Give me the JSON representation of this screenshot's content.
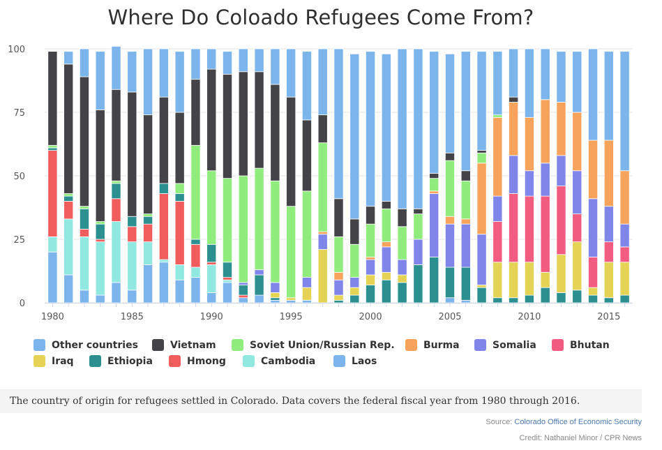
{
  "header": {
    "title": "Where Do Coloado Refugees Come From?"
  },
  "caption": "The country of origin for refugees settled in Colorado. Data covers the federal fiscal year from 1980 through 2016.",
  "footer": {
    "source_prefix": "Source: ",
    "source_name": "Colorado Office of Economic Security",
    "credit": "Credit: Nathaniel Minor / CPR News"
  },
  "chart_data": {
    "type": "bar",
    "stacked": true,
    "title": "Where Do Coloado Refugees Come From?",
    "xlabel": "",
    "ylabel": "",
    "ylim": [
      0,
      100
    ],
    "yticks": [
      0,
      25,
      50,
      75,
      100
    ],
    "xticks": [
      1980,
      1985,
      1990,
      1995,
      2000,
      2005,
      2010,
      2015
    ],
    "grid": true,
    "legend_position": "bottom",
    "categories": [
      1980,
      1981,
      1982,
      1983,
      1984,
      1985,
      1986,
      1987,
      1988,
      1989,
      1990,
      1991,
      1992,
      1993,
      1994,
      1995,
      1996,
      1997,
      1998,
      1999,
      2000,
      2001,
      2002,
      2003,
      2004,
      2005,
      2006,
      2007,
      2008,
      2009,
      2010,
      2011,
      2012,
      2013,
      2014,
      2015,
      2016
    ],
    "stack_order": [
      "Laos",
      "Cambodia",
      "Hmong",
      "Ethiopia",
      "Iraq",
      "Bhutan",
      "Somalia",
      "Burma",
      "Soviet Union/Russian Rep.",
      "Vietnam",
      "Other countries"
    ],
    "series": [
      {
        "name": "Laos",
        "color": "#7cb5ec",
        "values": [
          20,
          11,
          5,
          3,
          8,
          5,
          15,
          16,
          9,
          10,
          4,
          8,
          2,
          3,
          1,
          1,
          1,
          0,
          0,
          0,
          0,
          0,
          0,
          0,
          0,
          2,
          1,
          0,
          0,
          0,
          0,
          0,
          0,
          0,
          0,
          0,
          0
        ]
      },
      {
        "name": "Cambodia",
        "color": "#91e8e1",
        "values": [
          6,
          22,
          21,
          21,
          24,
          19,
          9,
          1,
          6,
          4,
          11,
          1,
          0,
          0,
          0,
          0,
          0,
          0,
          0,
          0,
          0,
          0,
          0,
          0,
          0,
          0,
          0,
          0,
          0,
          0,
          0,
          0,
          0,
          0,
          0,
          0,
          0
        ]
      },
      {
        "name": "Hmong",
        "color": "#f15c5c",
        "values": [
          34,
          7,
          3,
          1,
          9,
          6,
          7,
          26,
          25,
          9,
          1,
          1,
          1,
          0,
          0,
          0,
          0,
          0,
          0,
          0,
          0,
          0,
          0,
          0,
          0,
          0,
          0,
          0,
          0,
          0,
          0,
          0,
          0,
          0,
          0,
          0,
          0
        ]
      },
      {
        "name": "Ethiopia",
        "color": "#2b908f",
        "values": [
          1,
          2,
          8,
          6,
          6,
          4,
          3,
          4,
          3,
          2,
          7,
          6,
          4,
          8,
          1,
          0,
          0,
          0,
          1,
          3,
          7,
          9,
          8,
          15,
          18,
          12,
          13,
          6,
          2,
          2,
          3,
          6,
          4,
          5,
          3,
          2,
          3
        ]
      },
      {
        "name": "Iraq",
        "color": "#e4d354",
        "values": [
          0,
          0,
          0,
          0,
          0,
          0,
          0,
          0,
          0,
          0,
          0,
          0,
          0,
          0,
          2,
          1,
          5,
          21,
          2,
          3,
          4,
          3,
          3,
          0,
          0,
          0,
          0,
          1,
          14,
          14,
          13,
          6,
          15,
          19,
          3,
          14,
          13
        ]
      },
      {
        "name": "Bhutan",
        "color": "#f15c80",
        "values": [
          0,
          0,
          0,
          0,
          0,
          0,
          0,
          0,
          0,
          0,
          0,
          0,
          0,
          0,
          0,
          0,
          0,
          0,
          0,
          0,
          0,
          0,
          0,
          0,
          0,
          0,
          0,
          0,
          16,
          27,
          26,
          30,
          27,
          11,
          12,
          8,
          6
        ]
      },
      {
        "name": "Somalia",
        "color": "#8085e9",
        "values": [
          0,
          0,
          0,
          0,
          0,
          0,
          0,
          0,
          0,
          0,
          0,
          0,
          1,
          2,
          4,
          0,
          4,
          6,
          6,
          4,
          6,
          10,
          6,
          10,
          25,
          17,
          17,
          20,
          10,
          15,
          10,
          13,
          12,
          17,
          23,
          14,
          9
        ]
      },
      {
        "name": "Burma",
        "color": "#f7a35c",
        "values": [
          0,
          0,
          0,
          0,
          0,
          0,
          0,
          0,
          0,
          0,
          0,
          0,
          0,
          0,
          0,
          0,
          0,
          1,
          3,
          0,
          1,
          2,
          0,
          0,
          1,
          3,
          2,
          28,
          31,
          21,
          21,
          25,
          21,
          23,
          23,
          26,
          21
        ]
      },
      {
        "name": "Soviet Union/Russian Rep.",
        "color": "#90ed7d",
        "values": [
          1,
          1,
          1,
          1,
          1,
          0,
          1,
          0,
          4,
          37,
          29,
          33,
          42,
          40,
          40,
          36,
          34,
          35,
          14,
          13,
          13,
          13,
          13,
          10,
          5,
          22,
          15,
          4,
          1,
          0,
          0,
          0,
          0,
          0,
          0,
          0,
          0
        ]
      },
      {
        "name": "Vietnam",
        "color": "#434348",
        "values": [
          37,
          51,
          51,
          44,
          36,
          49,
          39,
          34,
          28,
          26,
          40,
          41,
          41,
          38,
          38,
          43,
          28,
          11,
          15,
          10,
          7,
          3,
          7,
          2,
          2,
          3,
          4,
          1,
          0,
          2,
          0,
          0,
          0,
          0,
          0,
          0,
          0
        ]
      },
      {
        "name": "Other countries",
        "color": "#7cb5ec",
        "values": [
          0,
          5,
          11,
          23,
          17,
          16,
          26,
          19,
          24,
          12,
          8,
          9,
          9,
          9,
          14,
          19,
          27,
          26,
          59,
          65,
          61,
          58,
          63,
          63,
          48,
          39,
          47,
          39,
          25,
          19,
          27,
          20,
          20,
          24,
          36,
          35,
          47
        ]
      }
    ]
  },
  "legend": [
    {
      "label": "Other countries",
      "color": "#7cb5ec"
    },
    {
      "label": "Vietnam",
      "color": "#434348"
    },
    {
      "label": "Soviet Union/Russian Rep.",
      "color": "#90ed7d"
    },
    {
      "label": "Burma",
      "color": "#f7a35c"
    },
    {
      "label": "Somalia",
      "color": "#8085e9"
    },
    {
      "label": "Bhutan",
      "color": "#f15c80"
    },
    {
      "label": "Iraq",
      "color": "#e4d354"
    },
    {
      "label": "Ethiopia",
      "color": "#2b908f"
    },
    {
      "label": "Hmong",
      "color": "#f15c5c"
    },
    {
      "label": "Cambodia",
      "color": "#91e8e1"
    },
    {
      "label": "Laos",
      "color": "#7cb5ec"
    }
  ]
}
